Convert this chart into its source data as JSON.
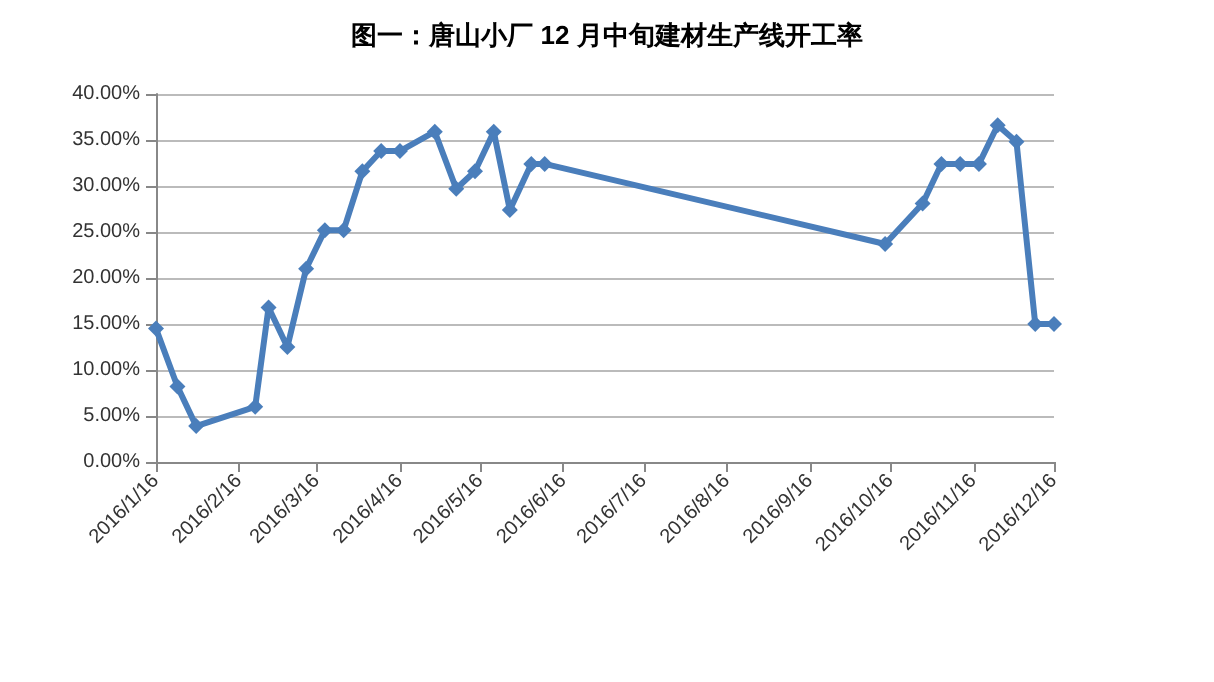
{
  "chart_data": {
    "type": "line",
    "title": "图一：唐山小厂 12 月中旬建材生产线开工率",
    "x": [
      "2016-01-16",
      "2016-01-24",
      "2016-01-31",
      "2016-02-22",
      "2016-02-27",
      "2016-03-05",
      "2016-03-12",
      "2016-03-19",
      "2016-03-26",
      "2016-04-02",
      "2016-04-09",
      "2016-04-16",
      "2016-04-29",
      "2016-05-07",
      "2016-05-14",
      "2016-05-21",
      "2016-05-27",
      "2016-06-04",
      "2016-06-09",
      "2016-10-14",
      "2016-10-28",
      "2016-11-04",
      "2016-11-11",
      "2016-11-18",
      "2016-11-25",
      "2016-12-02",
      "2016-12-09",
      "2016-12-16"
    ],
    "series": [
      {
        "color": "#4a7ebb",
        "values": [
          14.5,
          8.2,
          3.9,
          6.0,
          16.8,
          12.5,
          21.0,
          25.2,
          25.2,
          31.6,
          33.8,
          33.8,
          35.9,
          29.7,
          31.6,
          35.9,
          27.4,
          32.4,
          32.4,
          23.7,
          28.1,
          32.4,
          32.4,
          32.4,
          36.6,
          34.8,
          15.0,
          15.0
        ]
      }
    ],
    "xlim": [
      "2016-01-16",
      "2016-12-16"
    ],
    "xticks": [
      {
        "value": "2016-01-16",
        "label": "2016/1/16"
      },
      {
        "value": "2016-02-16",
        "label": "2016/2/16"
      },
      {
        "value": "2016-03-16",
        "label": "2016/3/16"
      },
      {
        "value": "2016-04-16",
        "label": "2016/4/16"
      },
      {
        "value": "2016-05-16",
        "label": "2016/5/16"
      },
      {
        "value": "2016-06-16",
        "label": "2016/6/16"
      },
      {
        "value": "2016-07-16",
        "label": "2016/7/16"
      },
      {
        "value": "2016-08-16",
        "label": "2016/8/16"
      },
      {
        "value": "2016-09-16",
        "label": "2016/9/16"
      },
      {
        "value": "2016-10-16",
        "label": "2016/10/16"
      },
      {
        "value": "2016-11-16",
        "label": "2016/11/16"
      },
      {
        "value": "2016-12-16",
        "label": "2016/12/16"
      }
    ],
    "ylim": [
      0,
      40
    ],
    "yticks": [
      {
        "value": 0,
        "label": "0.00%"
      },
      {
        "value": 5,
        "label": "5.00%"
      },
      {
        "value": 10,
        "label": "10.00%"
      },
      {
        "value": 15,
        "label": "15.00%"
      },
      {
        "value": 20,
        "label": "20.00%"
      },
      {
        "value": 25,
        "label": "25.00%"
      },
      {
        "value": 30,
        "label": "30.00%"
      },
      {
        "value": 35,
        "label": "35.00%"
      },
      {
        "value": 40,
        "label": "40.00%"
      }
    ],
    "grid": "y",
    "marker": "diamond",
    "line_style": "solid"
  }
}
